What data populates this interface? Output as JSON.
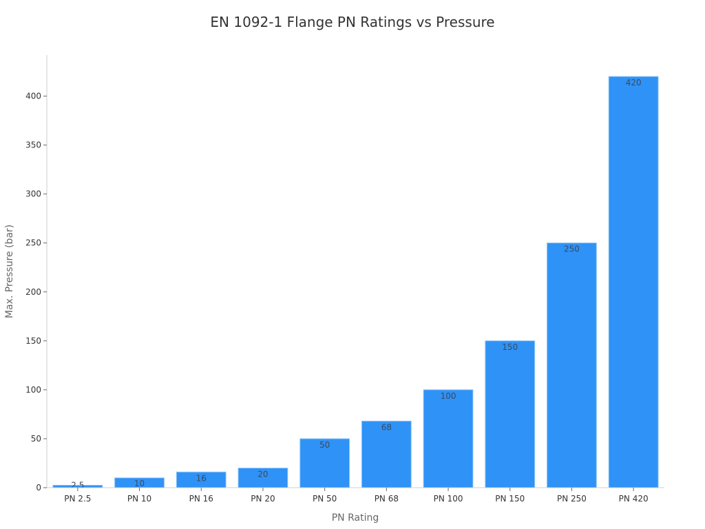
{
  "chart_data": {
    "type": "bar",
    "title": "EN 1092-1 Flange PN Ratings vs Pressure",
    "xlabel": "PN Rating",
    "ylabel": "Max. Pressure (bar)",
    "categories": [
      "PN 2.5",
      "PN 10",
      "PN 16",
      "PN 20",
      "PN 50",
      "PN 68",
      "PN 100",
      "PN 150",
      "PN 250",
      "PN 420"
    ],
    "values": [
      2.5,
      10,
      16,
      20,
      50,
      68,
      100,
      150,
      250,
      420
    ],
    "data_labels": [
      "2.5",
      "10",
      "16",
      "20",
      "50",
      "68",
      "100",
      "150",
      "250",
      "420"
    ],
    "yticks": [
      0,
      50,
      100,
      150,
      200,
      250,
      300,
      350,
      400
    ],
    "ylim": [
      0,
      441
    ],
    "grid": false,
    "legend": null,
    "bar_color": "#2f92f7",
    "bar_edge_color": "#8ec3f5"
  }
}
